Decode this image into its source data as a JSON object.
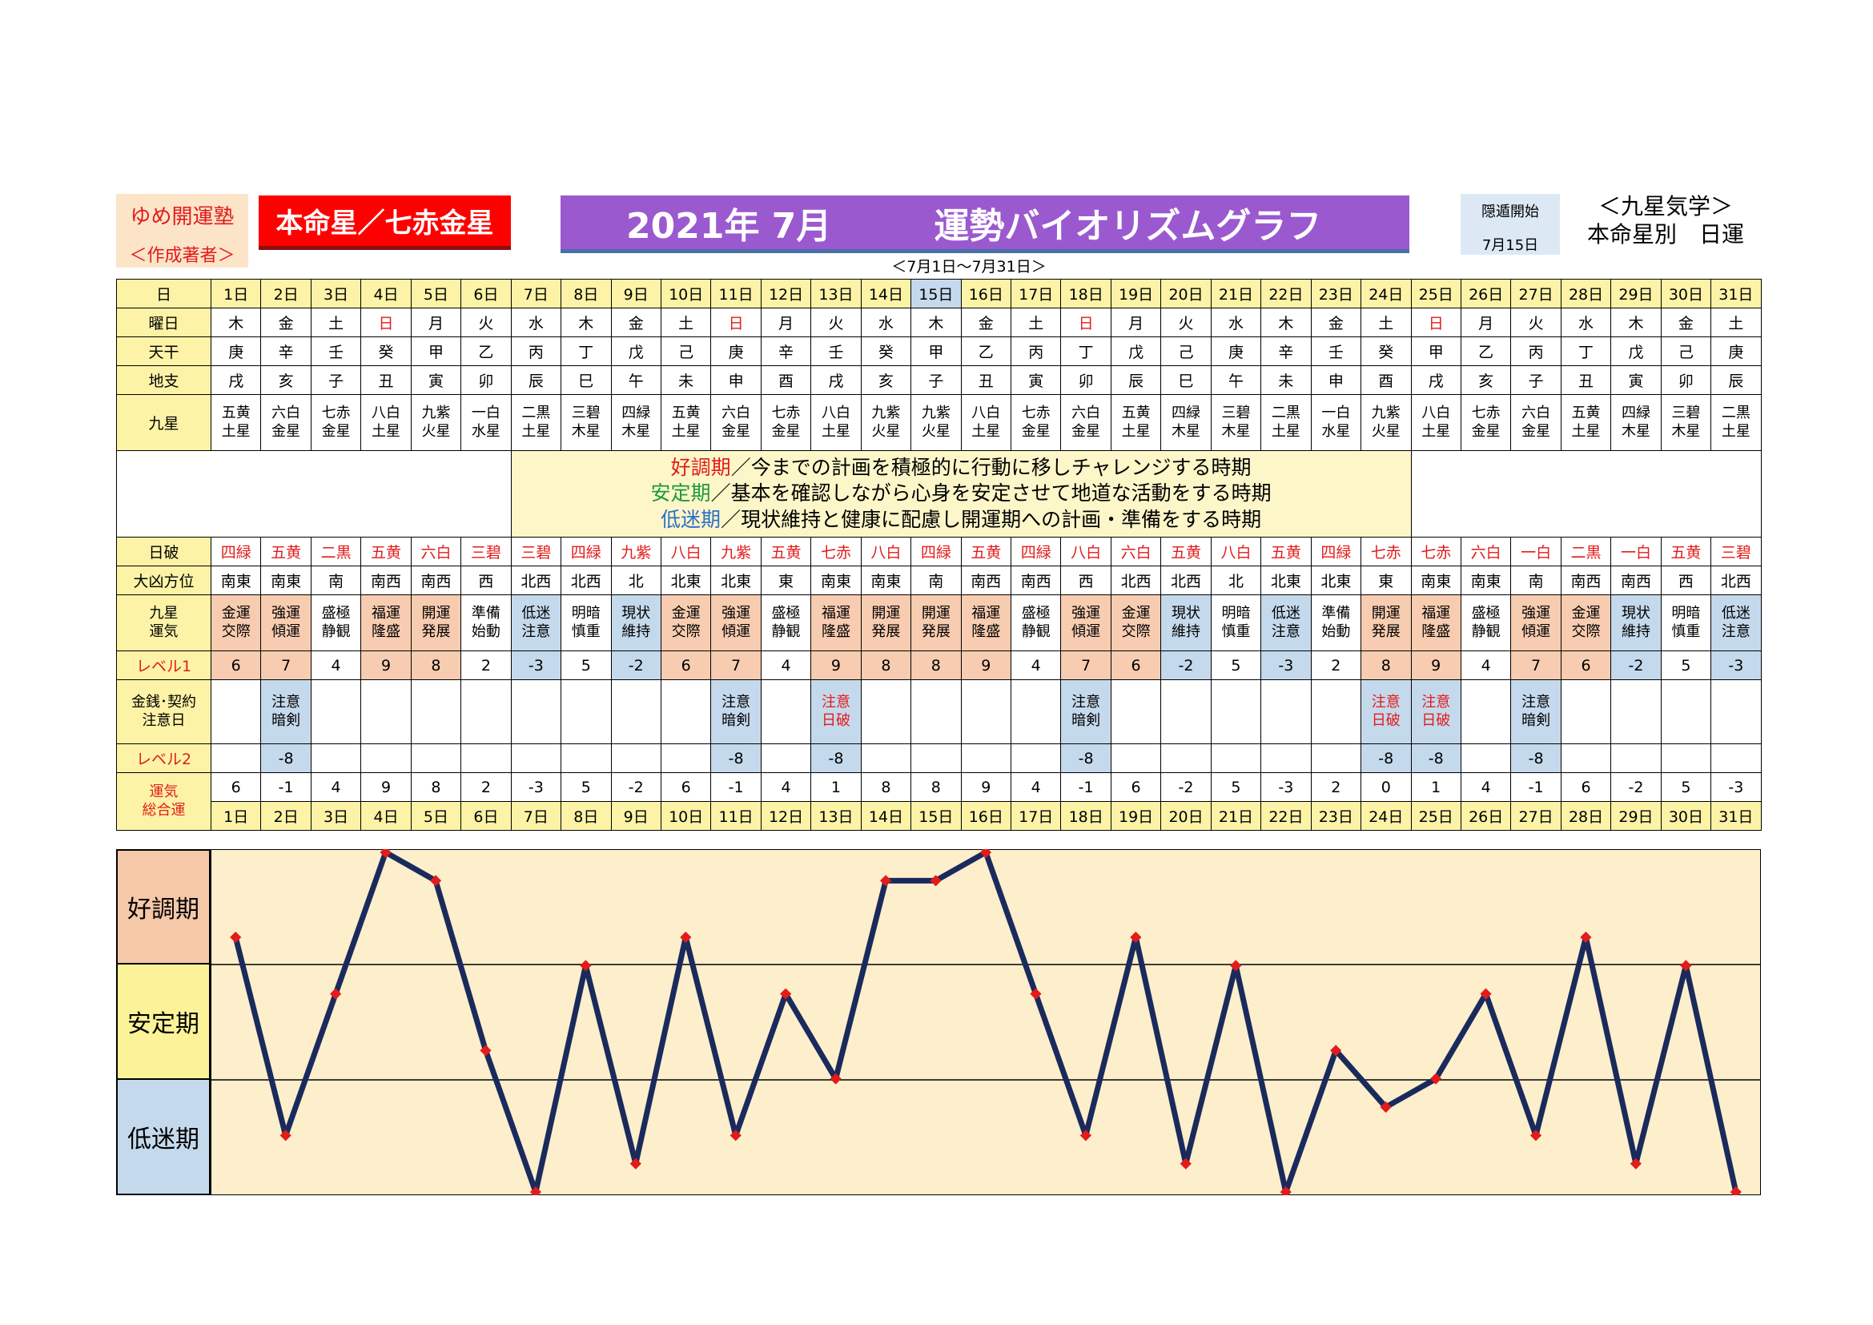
{
  "header": {
    "author_name": "ゆめ開運塾",
    "author_sub": "＜作成著者＞",
    "honmei_star": "本命星／七赤金星",
    "title_year_month": "2021年 7月",
    "title_main": "運勢バイオリズムグラフ",
    "period": "＜7月1日～7月31日＞",
    "mode_label": "隠遁開始",
    "mode_date": "7月15日",
    "kigaku_line1": "＜九星気学＞",
    "kigaku_line2": "本命星別　日運"
  },
  "colors": {
    "accent_red": "#ff0000",
    "title_purple": "#9b59d0",
    "good_pink": "#f8ccb0",
    "low_blue": "#c5d9ec",
    "label_yellow": "#fcf3a6",
    "line_navy": "#1a2a5c",
    "marker_red": "#e21b1b"
  },
  "labels": {
    "day": "日",
    "weekday": "曜日",
    "tenkan": "天干",
    "chishi": "地支",
    "kyusei": "九星",
    "nippa": "日破",
    "daikyo": "大凶方位",
    "kyusei_unki_1": "九星",
    "kyusei_unki_2": "運気",
    "level1": "レベル1",
    "money_1": "金銭･契約",
    "money_2": "注意日",
    "level2": "レベル2",
    "total_1": "運気",
    "total_2": "総合運"
  },
  "legend": {
    "good_term": "好調期",
    "good_text": "／今までの計画を積極的に行動に移しチャレンジする時期",
    "stable_term": "安定期",
    "stable_text": "／基本を確認しながら心身を安定させて地道な活動をする時期",
    "low_term": "低迷期",
    "low_text": "／現状維持と健康に配慮し開運期への計画・準備をする時期"
  },
  "zones": {
    "good": "好調期",
    "stable": "安定期",
    "low": "低迷期"
  },
  "days": [
    "1日",
    "2日",
    "3日",
    "4日",
    "5日",
    "6日",
    "7日",
    "8日",
    "9日",
    "10日",
    "11日",
    "12日",
    "13日",
    "14日",
    "15日",
    "16日",
    "17日",
    "18日",
    "19日",
    "20日",
    "21日",
    "22日",
    "23日",
    "24日",
    "25日",
    "26日",
    "27日",
    "28日",
    "29日",
    "30日",
    "31日"
  ],
  "weekdays": [
    "木",
    "金",
    "土",
    "日",
    "月",
    "火",
    "水",
    "木",
    "金",
    "土",
    "日",
    "月",
    "火",
    "水",
    "木",
    "金",
    "土",
    "日",
    "月",
    "火",
    "水",
    "木",
    "金",
    "土",
    "日",
    "月",
    "火",
    "水",
    "木",
    "金",
    "土"
  ],
  "tenkan": [
    "庚",
    "辛",
    "壬",
    "癸",
    "甲",
    "乙",
    "丙",
    "丁",
    "戊",
    "己",
    "庚",
    "辛",
    "壬",
    "癸",
    "甲",
    "乙",
    "丙",
    "丁",
    "戊",
    "己",
    "庚",
    "辛",
    "壬",
    "癸",
    "甲",
    "乙",
    "丙",
    "丁",
    "戊",
    "己",
    "庚"
  ],
  "chishi": [
    "戌",
    "亥",
    "子",
    "丑",
    "寅",
    "卯",
    "辰",
    "巳",
    "午",
    "未",
    "申",
    "酉",
    "戌",
    "亥",
    "子",
    "丑",
    "寅",
    "卯",
    "辰",
    "巳",
    "午",
    "未",
    "申",
    "酉",
    "戌",
    "亥",
    "子",
    "丑",
    "寅",
    "卯",
    "辰"
  ],
  "kyusei_1": [
    "五黄",
    "六白",
    "七赤",
    "八白",
    "九紫",
    "一白",
    "二黒",
    "三碧",
    "四緑",
    "五黄",
    "六白",
    "七赤",
    "八白",
    "九紫",
    "九紫",
    "八白",
    "七赤",
    "六白",
    "五黄",
    "四緑",
    "三碧",
    "二黒",
    "一白",
    "九紫",
    "八白",
    "七赤",
    "六白",
    "五黄",
    "四緑",
    "三碧",
    "二黒"
  ],
  "kyusei_2": [
    "土星",
    "金星",
    "金星",
    "土星",
    "火星",
    "水星",
    "土星",
    "木星",
    "木星",
    "土星",
    "金星",
    "金星",
    "土星",
    "火星",
    "火星",
    "土星",
    "金星",
    "金星",
    "土星",
    "木星",
    "木星",
    "土星",
    "水星",
    "火星",
    "土星",
    "金星",
    "金星",
    "土星",
    "木星",
    "木星",
    "土星"
  ],
  "nippa": [
    "四緑",
    "五黄",
    "二黒",
    "五黄",
    "六白",
    "三碧",
    "三碧",
    "四緑",
    "九紫",
    "八白",
    "九紫",
    "五黄",
    "七赤",
    "八白",
    "四緑",
    "五黄",
    "四緑",
    "八白",
    "六白",
    "五黄",
    "八白",
    "五黄",
    "四緑",
    "七赤",
    "七赤",
    "六白",
    "一白",
    "二黒",
    "一白",
    "五黄",
    "三碧"
  ],
  "daikyo": [
    "南東",
    "南東",
    "南",
    "南西",
    "南西",
    "西",
    "北西",
    "北西",
    "北",
    "北東",
    "北東",
    "東",
    "南東",
    "南東",
    "南",
    "南西",
    "南西",
    "西",
    "北西",
    "北西",
    "北",
    "北東",
    "北東",
    "東",
    "南東",
    "南東",
    "南",
    "南西",
    "南西",
    "西",
    "北西"
  ],
  "unki_1": [
    "金運",
    "強運",
    "盛極",
    "福運",
    "開運",
    "準備",
    "低迷",
    "明暗",
    "現状",
    "金運",
    "強運",
    "盛極",
    "福運",
    "開運",
    "開運",
    "福運",
    "盛極",
    "強運",
    "金運",
    "現状",
    "明暗",
    "低迷",
    "準備",
    "開運",
    "福運",
    "盛極",
    "強運",
    "金運",
    "現状",
    "明暗",
    "低迷"
  ],
  "unki_2": [
    "交際",
    "傾運",
    "静観",
    "隆盛",
    "発展",
    "始動",
    "注意",
    "慎重",
    "維持",
    "交際",
    "傾運",
    "静観",
    "隆盛",
    "発展",
    "発展",
    "隆盛",
    "静観",
    "傾運",
    "交際",
    "維持",
    "慎重",
    "注意",
    "始動",
    "発展",
    "隆盛",
    "静観",
    "傾運",
    "交際",
    "維持",
    "慎重",
    "注意"
  ],
  "level1": [
    "6",
    "7",
    "4",
    "9",
    "8",
    "2",
    "-3",
    "5",
    "-2",
    "6",
    "7",
    "4",
    "9",
    "8",
    "8",
    "9",
    "4",
    "7",
    "6",
    "-2",
    "5",
    "-3",
    "2",
    "8",
    "9",
    "4",
    "7",
    "6",
    "-2",
    "5",
    "-3"
  ],
  "money_1": [
    "",
    "注意",
    "",
    "",
    "",
    "",
    "",
    "",
    "",
    "",
    "注意",
    "",
    "注意",
    "",
    "",
    "",
    "",
    "注意",
    "",
    "",
    "",
    "",
    "",
    "注意",
    "注意",
    "",
    "注意",
    "",
    "",
    "",
    ""
  ],
  "money_2": [
    "",
    "暗剣",
    "",
    "",
    "",
    "",
    "",
    "",
    "",
    "",
    "暗剣",
    "",
    "日破",
    "",
    "",
    "",
    "",
    "暗剣",
    "",
    "",
    "",
    "",
    "",
    "日破",
    "日破",
    "",
    "暗剣",
    "",
    "",
    "",
    ""
  ],
  "level2": [
    "",
    "-8",
    "",
    "",
    "",
    "",
    "",
    "",
    "",
    "",
    "-8",
    "",
    "-8",
    "",
    "",
    "",
    "",
    "-8",
    "",
    "",
    "",
    "",
    "",
    "-8",
    "-8",
    "",
    "-8",
    "",
    "",
    "",
    ""
  ],
  "total": [
    "6",
    "-1",
    "4",
    "9",
    "8",
    "2",
    "-3",
    "5",
    "-2",
    "6",
    "-1",
    "4",
    "1",
    "8",
    "8",
    "9",
    "4",
    "-1",
    "6",
    "-2",
    "5",
    "-3",
    "2",
    "0",
    "1",
    "4",
    "-1",
    "6",
    "-2",
    "5",
    "-3"
  ],
  "chart_data": {
    "type": "line",
    "x": [
      "1日",
      "2日",
      "3日",
      "4日",
      "5日",
      "6日",
      "7日",
      "8日",
      "9日",
      "10日",
      "11日",
      "12日",
      "13日",
      "14日",
      "15日",
      "16日",
      "17日",
      "18日",
      "19日",
      "20日",
      "21日",
      "22日",
      "23日",
      "24日",
      "25日",
      "26日",
      "27日",
      "28日",
      "29日",
      "30日",
      "31日"
    ],
    "series": [
      {
        "values": [
          6,
          -1,
          4,
          9,
          8,
          2,
          -3,
          5,
          -2,
          6,
          -1,
          4,
          1,
          8,
          8,
          9,
          4,
          -1,
          6,
          -2,
          5,
          -3,
          2,
          0,
          1,
          4,
          -1,
          6,
          -2,
          5,
          -3
        ]
      }
    ],
    "ylim": [
      -3,
      9
    ],
    "bands": [
      "好調期",
      "安定期",
      "低迷期"
    ],
    "grid": false
  }
}
